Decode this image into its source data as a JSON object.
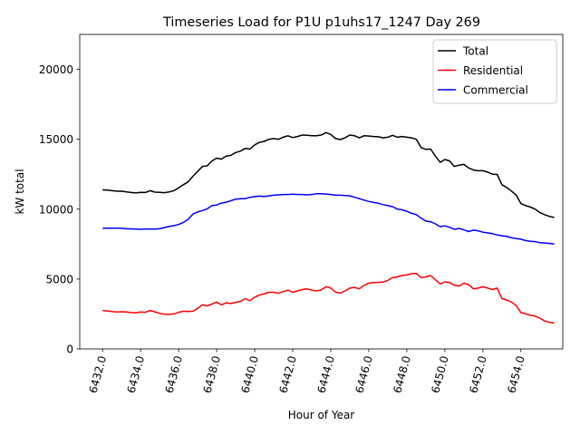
{
  "chart_data": {
    "type": "line",
    "title": "Timeseries Load for P1U p1uhs17_1247  Day 269",
    "xlabel": "Hour of Year",
    "ylabel": "kW total",
    "xlim": [
      6430.8,
      6456.2
    ],
    "ylim": [
      0,
      22500
    ],
    "x_ticks": [
      6432,
      6434,
      6436,
      6438,
      6440,
      6442,
      6444,
      6446,
      6448,
      6450,
      6452,
      6454
    ],
    "x_tick_labels": [
      "6432.0",
      "6434.0",
      "6436.0",
      "6438.0",
      "6440.0",
      "6442.0",
      "6444.0",
      "6446.0",
      "6448.0",
      "6450.0",
      "6452.0",
      "6454.0"
    ],
    "y_ticks": [
      0,
      5000,
      10000,
      15000,
      20000
    ],
    "y_tick_labels": [
      "0",
      "5000",
      "10000",
      "15000",
      "20000"
    ],
    "legend_position": "top-right",
    "x": [
      6432.0,
      6432.25,
      6432.5,
      6432.75,
      6433.0,
      6433.25,
      6433.5,
      6433.75,
      6434.0,
      6434.25,
      6434.5,
      6434.75,
      6435.0,
      6435.25,
      6435.5,
      6435.75,
      6436.0,
      6436.25,
      6436.5,
      6436.75,
      6437.0,
      6437.25,
      6437.5,
      6437.75,
      6438.0,
      6438.25,
      6438.5,
      6438.75,
      6439.0,
      6439.25,
      6439.5,
      6439.75,
      6440.0,
      6440.25,
      6440.5,
      6440.75,
      6441.0,
      6441.25,
      6441.5,
      6441.75,
      6442.0,
      6442.25,
      6442.5,
      6442.75,
      6443.0,
      6443.25,
      6443.5,
      6443.75,
      6444.0,
      6444.25,
      6444.5,
      6444.75,
      6445.0,
      6445.25,
      6445.5,
      6445.75,
      6446.0,
      6446.25,
      6446.5,
      6446.75,
      6447.0,
      6447.25,
      6447.5,
      6447.75,
      6448.0,
      6448.25,
      6448.5,
      6448.75,
      6449.0,
      6449.25,
      6449.5,
      6449.75,
      6450.0,
      6450.25,
      6450.5,
      6450.75,
      6451.0,
      6451.25,
      6451.5,
      6451.75,
      6452.0,
      6452.25,
      6452.5,
      6452.75,
      6453.0,
      6453.25,
      6453.5,
      6453.75,
      6454.0,
      6454.25,
      6454.5,
      6454.75,
      6455.0,
      6455.25,
      6455.5,
      6455.75
    ],
    "series": [
      {
        "name": "Total",
        "color": "#000000",
        "values": [
          11380,
          11360,
          11320,
          11280,
          11290,
          11230,
          11190,
          11160,
          11200,
          11190,
          11320,
          11220,
          11200,
          11180,
          11230,
          11320,
          11520,
          11750,
          11950,
          12350,
          12700,
          13050,
          13100,
          13450,
          13650,
          13580,
          13800,
          13850,
          14050,
          14150,
          14350,
          14300,
          14600,
          14780,
          14850,
          15000,
          15050,
          15000,
          15150,
          15250,
          15120,
          15200,
          15300,
          15280,
          15250,
          15260,
          15300,
          15480,
          15350,
          15050,
          14980,
          15100,
          15300,
          15250,
          15100,
          15250,
          15230,
          15200,
          15180,
          15100,
          15150,
          15280,
          15150,
          15200,
          15150,
          15100,
          15000,
          14400,
          14280,
          14300,
          13800,
          13350,
          13550,
          13450,
          13050,
          13150,
          13200,
          12950,
          12800,
          12750,
          12750,
          12650,
          12500,
          12480,
          11750,
          11550,
          11300,
          11000,
          10400,
          10250,
          10150,
          10000,
          9750,
          9600,
          9480,
          9400
        ]
      },
      {
        "name": "Residential",
        "color": "#ff0000",
        "values": [
          2750,
          2720,
          2680,
          2640,
          2660,
          2640,
          2600,
          2590,
          2640,
          2620,
          2750,
          2650,
          2550,
          2480,
          2470,
          2500,
          2620,
          2700,
          2680,
          2700,
          2900,
          3150,
          3080,
          3200,
          3350,
          3150,
          3300,
          3250,
          3330,
          3400,
          3600,
          3450,
          3700,
          3850,
          3950,
          4050,
          4050,
          3980,
          4100,
          4200,
          4050,
          4150,
          4250,
          4300,
          4200,
          4150,
          4220,
          4450,
          4350,
          4050,
          4000,
          4150,
          4350,
          4400,
          4300,
          4550,
          4700,
          4750,
          4760,
          4780,
          4900,
          5100,
          5150,
          5250,
          5300,
          5380,
          5400,
          5100,
          5150,
          5250,
          4950,
          4650,
          4800,
          4750,
          4550,
          4500,
          4700,
          4600,
          4300,
          4350,
          4450,
          4350,
          4250,
          4350,
          3600,
          3500,
          3350,
          3100,
          2600,
          2500,
          2400,
          2350,
          2200,
          2000,
          1900,
          1850
        ]
      },
      {
        "name": "Commercial",
        "color": "#0000ff",
        "values": [
          8630,
          8640,
          8640,
          8640,
          8630,
          8590,
          8590,
          8570,
          8560,
          8570,
          8570,
          8570,
          8600,
          8680,
          8760,
          8820,
          8900,
          9050,
          9270,
          9650,
          9800,
          9900,
          10020,
          10250,
          10300,
          10430,
          10500,
          10600,
          10720,
          10750,
          10750,
          10850,
          10900,
          10930,
          10900,
          10950,
          11000,
          11020,
          11050,
          11050,
          11070,
          11050,
          11050,
          11020,
          11050,
          11100,
          11100,
          11080,
          11050,
          11000,
          11000,
          10980,
          10950,
          10850,
          10750,
          10650,
          10550,
          10480,
          10420,
          10320,
          10250,
          10180,
          10000,
          9950,
          9850,
          9700,
          9600,
          9350,
          9150,
          9100,
          8950,
          8750,
          8800,
          8700,
          8550,
          8620,
          8520,
          8400,
          8500,
          8450,
          8350,
          8300,
          8250,
          8150,
          8100,
          8050,
          7950,
          7900,
          7850,
          7750,
          7700,
          7680,
          7600,
          7580,
          7550,
          7500
        ]
      }
    ]
  }
}
